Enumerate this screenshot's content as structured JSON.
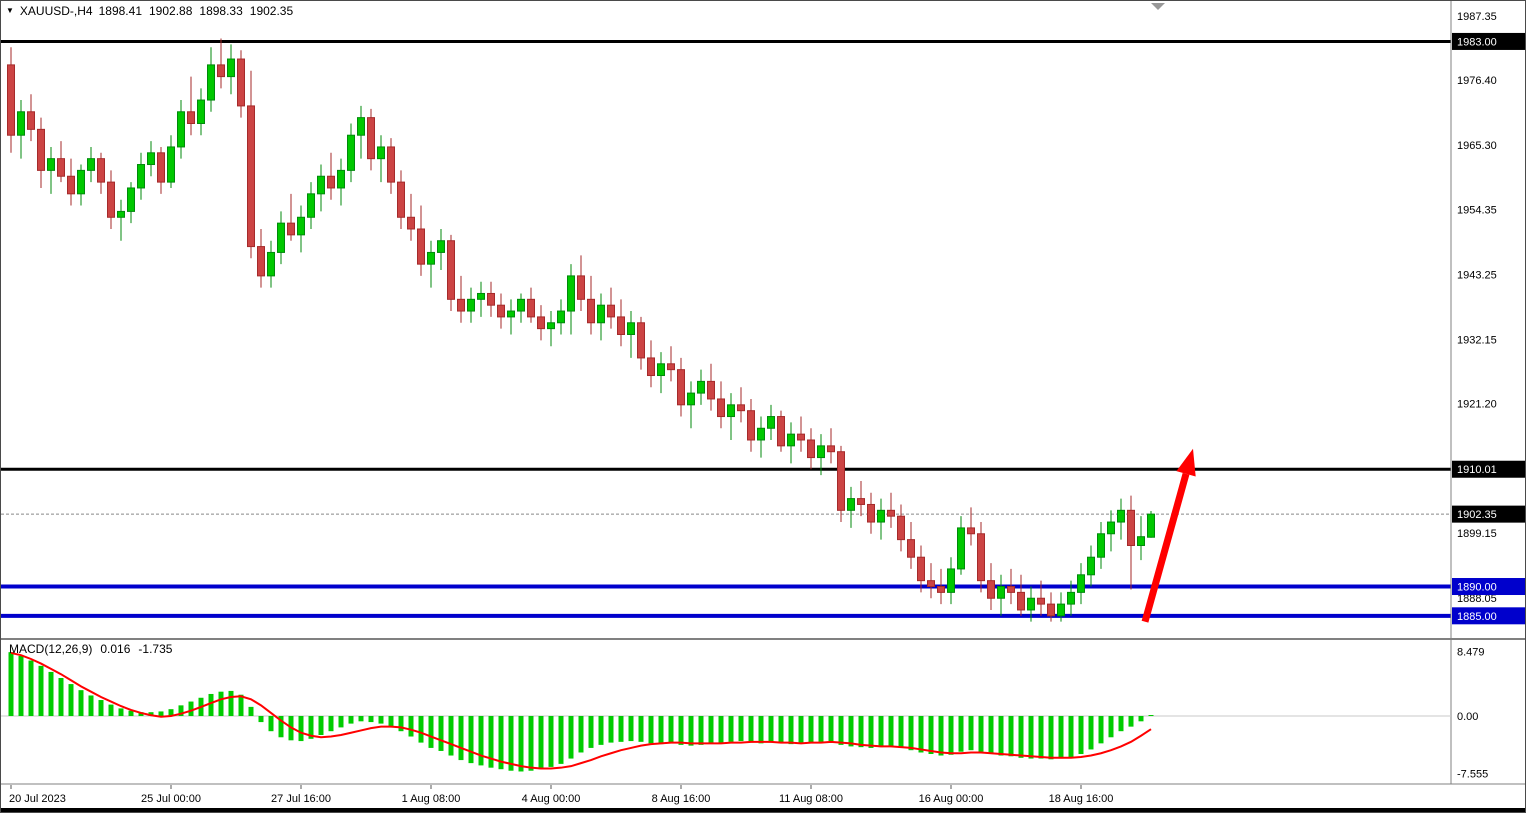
{
  "window": {
    "symbol_period": "XAUUSD-,H4",
    "ohlc": {
      "open": "1898.41",
      "high": "1902.88",
      "low": "1898.33",
      "close": "1902.35"
    }
  },
  "indicator": {
    "label": "MACD(12,26,9)",
    "main_value": "0.016",
    "signal_value": "-1.735"
  },
  "chart_data": {
    "type": "candlestick",
    "title": "XAUUSD- H4 price chart with MACD(12,26,9)",
    "symbol": "XAUUSD-",
    "timeframe": "H4",
    "price_axis_range": [
      1881.2,
      1989.9
    ],
    "grid": false,
    "style": {
      "background": "#FFFFFF",
      "bull_fill": "#00C800",
      "bull_stroke": "#008A0B",
      "bear_fill": "#CC4444",
      "bear_stroke": "#A52A2A",
      "macd_hist": "#00CC00",
      "macd_signal": "#FF0000",
      "axis_text": "#000000",
      "current_price_line": "#888888",
      "blue_level": "#0000CC",
      "black_level": "#000000",
      "arrow": "#FF0000"
    },
    "y_ticks": [
      1987.35,
      1976.4,
      1965.3,
      1954.35,
      1943.25,
      1932.15,
      1921.2,
      1899.15,
      1888.05
    ],
    "hlines": [
      {
        "price": 1983.0,
        "color": "#000000",
        "width": 3
      },
      {
        "price": 1910.01,
        "color": "#000000",
        "width": 3
      },
      {
        "price": 1890.0,
        "color": "#0000CC",
        "width": 4
      },
      {
        "price": 1885.0,
        "color": "#0000CC",
        "width": 4
      }
    ],
    "current_price": 1902.35,
    "price_labels": [
      {
        "price": 1983.0,
        "bg": "#000000"
      },
      {
        "price": 1910.01,
        "bg": "#000000"
      },
      {
        "price": 1902.35,
        "bg": "#000000"
      },
      {
        "price": 1890.0,
        "bg": "#0000CC"
      },
      {
        "price": 1885.0,
        "bg": "#0000CC"
      }
    ],
    "x_labels": [
      {
        "index": 0,
        "label": "20 Jul 2023"
      },
      {
        "index": 16,
        "label": "25 Jul 00:00"
      },
      {
        "index": 29,
        "label": "27 Jul 16:00"
      },
      {
        "index": 42,
        "label": "1 Aug 08:00"
      },
      {
        "index": 54,
        "label": "4 Aug 00:00"
      },
      {
        "index": 67,
        "label": "8 Aug 16:00"
      },
      {
        "index": 80,
        "label": "11 Aug 08:00"
      },
      {
        "index": 94,
        "label": "16 Aug 00:00"
      },
      {
        "index": 107,
        "label": "18 Aug 16:00"
      }
    ],
    "ohlc": [
      [
        1979,
        1982,
        1964,
        1967
      ],
      [
        1967,
        1973,
        1963,
        1971
      ],
      [
        1971,
        1974,
        1966,
        1968
      ],
      [
        1968,
        1970,
        1958,
        1961
      ],
      [
        1961,
        1965,
        1957,
        1963
      ],
      [
        1963,
        1966,
        1959,
        1960
      ],
      [
        1960,
        1963,
        1955,
        1957
      ],
      [
        1957,
        1962,
        1955,
        1961
      ],
      [
        1961,
        1965,
        1959,
        1963
      ],
      [
        1963,
        1964,
        1957,
        1959
      ],
      [
        1959,
        1961,
        1951,
        1953
      ],
      [
        1953,
        1956,
        1949,
        1954
      ],
      [
        1954,
        1959,
        1952,
        1958
      ],
      [
        1958,
        1964,
        1956,
        1962
      ],
      [
        1962,
        1966,
        1960,
        1964
      ],
      [
        1964,
        1965,
        1957,
        1959
      ],
      [
        1959,
        1967,
        1958,
        1965
      ],
      [
        1965,
        1973,
        1963,
        1971
      ],
      [
        1971,
        1977,
        1967,
        1969
      ],
      [
        1969,
        1975,
        1967,
        1973
      ],
      [
        1973,
        1982,
        1971,
        1979
      ],
      [
        1979,
        1983.5,
        1975,
        1977
      ],
      [
        1977,
        1982.5,
        1974,
        1980
      ],
      [
        1980,
        1981.5,
        1970,
        1972
      ],
      [
        1972,
        1978,
        1946,
        1948
      ],
      [
        1948,
        1951,
        1941,
        1943
      ],
      [
        1943,
        1949,
        1941,
        1947
      ],
      [
        1947,
        1954,
        1945,
        1952
      ],
      [
        1952,
        1957,
        1949,
        1950
      ],
      [
        1950,
        1955,
        1947,
        1953
      ],
      [
        1953,
        1959,
        1951,
        1957
      ],
      [
        1957,
        1962,
        1954,
        1960
      ],
      [
        1960,
        1964,
        1956,
        1958
      ],
      [
        1958,
        1963,
        1955,
        1961
      ],
      [
        1961,
        1969,
        1959,
        1967
      ],
      [
        1967,
        1972,
        1963,
        1970
      ],
      [
        1970,
        1971.5,
        1961,
        1963
      ],
      [
        1963,
        1967,
        1959,
        1965
      ],
      [
        1965,
        1966.5,
        1957,
        1959
      ],
      [
        1959,
        1961,
        1951,
        1953
      ],
      [
        1953,
        1957,
        1949,
        1951
      ],
      [
        1951,
        1955,
        1943,
        1945
      ],
      [
        1945,
        1949,
        1941,
        1947
      ],
      [
        1947,
        1951,
        1944,
        1949
      ],
      [
        1949,
        1950,
        1937,
        1939
      ],
      [
        1939,
        1943,
        1935,
        1937
      ],
      [
        1937,
        1941,
        1935,
        1939
      ],
      [
        1939,
        1942,
        1936,
        1940
      ],
      [
        1940,
        1942,
        1936,
        1938
      ],
      [
        1938,
        1940,
        1934,
        1936
      ],
      [
        1936,
        1939,
        1933,
        1937
      ],
      [
        1937,
        1940,
        1935,
        1939
      ],
      [
        1939,
        1941,
        1935,
        1936
      ],
      [
        1936,
        1938,
        1932,
        1934
      ],
      [
        1934,
        1937,
        1931,
        1935
      ],
      [
        1935,
        1939,
        1933,
        1937
      ],
      [
        1937,
        1945,
        1933,
        1943
      ],
      [
        1943,
        1946.5,
        1937,
        1939
      ],
      [
        1939,
        1943,
        1933,
        1935
      ],
      [
        1935,
        1940,
        1932,
        1938
      ],
      [
        1938,
        1941,
        1934,
        1936
      ],
      [
        1936,
        1939,
        1931,
        1933
      ],
      [
        1933,
        1937,
        1929,
        1935
      ],
      [
        1935,
        1936,
        1927,
        1929
      ],
      [
        1929,
        1932,
        1924,
        1926
      ],
      [
        1926,
        1930,
        1923,
        1928
      ],
      [
        1928,
        1931,
        1925,
        1927
      ],
      [
        1927,
        1929,
        1919,
        1921
      ],
      [
        1921,
        1925,
        1917,
        1923
      ],
      [
        1923,
        1927,
        1921,
        1925
      ],
      [
        1925,
        1928,
        1920,
        1922
      ],
      [
        1922,
        1925,
        1917,
        1919
      ],
      [
        1919,
        1923,
        1915,
        1921
      ],
      [
        1921,
        1924,
        1918,
        1920
      ],
      [
        1920,
        1922,
        1913,
        1915
      ],
      [
        1915,
        1919,
        1912,
        1917
      ],
      [
        1917,
        1921,
        1915,
        1919
      ],
      [
        1919,
        1920,
        1913,
        1914
      ],
      [
        1914,
        1918,
        1911,
        1916
      ],
      [
        1916,
        1919,
        1913,
        1915
      ],
      [
        1915,
        1917,
        1910,
        1912
      ],
      [
        1912,
        1916,
        1909,
        1914
      ],
      [
        1914,
        1917,
        1911,
        1913
      ],
      [
        1913,
        1914,
        1901,
        1903
      ],
      [
        1903,
        1907,
        1900,
        1905
      ],
      [
        1905,
        1908,
        1902,
        1904
      ],
      [
        1904,
        1906,
        1899,
        1901
      ],
      [
        1901,
        1905,
        1898,
        1903
      ],
      [
        1903,
        1906,
        1900,
        1902
      ],
      [
        1902,
        1904,
        1896,
        1898
      ],
      [
        1898,
        1901,
        1893,
        1895
      ],
      [
        1895,
        1897,
        1889,
        1891
      ],
      [
        1891,
        1894,
        1888,
        1890
      ],
      [
        1890,
        1893,
        1887,
        1889
      ],
      [
        1889,
        1895,
        1887,
        1893
      ],
      [
        1893,
        1902,
        1892,
        1900
      ],
      [
        1900,
        1903.5,
        1897,
        1899
      ],
      [
        1899,
        1901,
        1889,
        1891
      ],
      [
        1891,
        1894,
        1886,
        1888
      ],
      [
        1888,
        1892,
        1885,
        1890
      ],
      [
        1890,
        1893,
        1887,
        1889
      ],
      [
        1889,
        1892,
        1885,
        1886
      ],
      [
        1886,
        1890,
        1884,
        1888
      ],
      [
        1888,
        1891,
        1885,
        1887
      ],
      [
        1887,
        1889,
        1884,
        1885
      ],
      [
        1885,
        1889,
        1884,
        1887
      ],
      [
        1887,
        1891,
        1885,
        1889
      ],
      [
        1889,
        1894,
        1887,
        1892
      ],
      [
        1892,
        1897,
        1890,
        1895
      ],
      [
        1895,
        1901,
        1893,
        1899
      ],
      [
        1899,
        1903,
        1896,
        1901
      ],
      [
        1901,
        1905,
        1898,
        1903
      ],
      [
        1903,
        1905.5,
        1889.5,
        1897
      ],
      [
        1897,
        1902,
        1894.5,
        1898.5
      ],
      [
        1898.41,
        1902.88,
        1898.33,
        1902.35
      ]
    ],
    "macd": {
      "range": [
        -8.4,
        9.4
      ],
      "scale_ticks": [
        {
          "label": "8.479",
          "value": 8.479
        },
        {
          "label": "0.00",
          "value": 0
        },
        {
          "label": "-7.555",
          "value": -7.555
        }
      ],
      "histogram": [
        8.4,
        7.9,
        7.3,
        6.6,
        5.8,
        5.0,
        4.2,
        3.4,
        2.7,
        2.1,
        1.5,
        1.0,
        0.7,
        0.5,
        0.5,
        0.6,
        0.9,
        1.4,
        1.9,
        2.4,
        2.9,
        3.2,
        3.3,
        2.8,
        1.2,
        -0.8,
        -2.0,
        -2.8,
        -3.2,
        -3.3,
        -3.0,
        -2.5,
        -2.0,
        -1.5,
        -1.0,
        -0.7,
        -0.8,
        -1.0,
        -1.4,
        -2.0,
        -2.7,
        -3.5,
        -4.2,
        -4.6,
        -5.2,
        -5.8,
        -6.2,
        -6.5,
        -6.8,
        -7.0,
        -7.2,
        -7.3,
        -7.2,
        -7.0,
        -6.7,
        -6.3,
        -5.6,
        -4.8,
        -4.2,
        -3.8,
        -3.5,
        -3.4,
        -3.3,
        -3.4,
        -3.6,
        -3.7,
        -3.6,
        -3.8,
        -3.9,
        -3.8,
        -3.6,
        -3.5,
        -3.4,
        -3.3,
        -3.5,
        -3.6,
        -3.5,
        -3.6,
        -3.7,
        -3.6,
        -3.5,
        -3.4,
        -3.3,
        -3.8,
        -4.0,
        -4.1,
        -4.2,
        -4.1,
        -4.0,
        -4.2,
        -4.5,
        -4.8,
        -5.0,
        -5.2,
        -5.1,
        -4.7,
        -4.5,
        -4.7,
        -5.0,
        -5.2,
        -5.3,
        -5.5,
        -5.6,
        -5.6,
        -5.7,
        -5.6,
        -5.4,
        -5.0,
        -4.4,
        -3.6,
        -2.8,
        -2.0,
        -1.4,
        -0.7,
        0.016
      ],
      "signal": [
        8.3,
        8.0,
        7.5,
        6.9,
        6.2,
        5.5,
        4.7,
        3.9,
        3.2,
        2.5,
        1.9,
        1.3,
        0.8,
        0.4,
        0.1,
        -0.1,
        0.0,
        0.3,
        0.7,
        1.2,
        1.7,
        2.2,
        2.5,
        2.6,
        2.2,
        1.4,
        0.4,
        -0.6,
        -1.5,
        -2.2,
        -2.6,
        -2.8,
        -2.7,
        -2.5,
        -2.2,
        -1.9,
        -1.6,
        -1.4,
        -1.4,
        -1.5,
        -1.8,
        -2.2,
        -2.7,
        -3.2,
        -3.7,
        -4.2,
        -4.7,
        -5.2,
        -5.6,
        -6.0,
        -6.3,
        -6.6,
        -6.8,
        -6.9,
        -6.9,
        -6.8,
        -6.6,
        -6.2,
        -5.8,
        -5.3,
        -4.9,
        -4.5,
        -4.2,
        -3.9,
        -3.7,
        -3.6,
        -3.5,
        -3.5,
        -3.6,
        -3.6,
        -3.6,
        -3.6,
        -3.5,
        -3.5,
        -3.4,
        -3.4,
        -3.4,
        -3.5,
        -3.5,
        -3.6,
        -3.5,
        -3.5,
        -3.4,
        -3.5,
        -3.6,
        -3.8,
        -3.9,
        -4.0,
        -4.0,
        -4.1,
        -4.2,
        -4.4,
        -4.6,
        -4.8,
        -4.9,
        -4.9,
        -4.8,
        -4.8,
        -4.9,
        -5.0,
        -5.1,
        -5.2,
        -5.3,
        -5.4,
        -5.5,
        -5.5,
        -5.5,
        -5.4,
        -5.2,
        -4.9,
        -4.5,
        -4.0,
        -3.4,
        -2.6,
        -1.735
      ]
    },
    "annotation_arrow": {
      "from_index": 113.4,
      "from_price": 1884.0,
      "to_index": 118.2,
      "to_price": 1913.5,
      "color": "#FF0000"
    }
  }
}
